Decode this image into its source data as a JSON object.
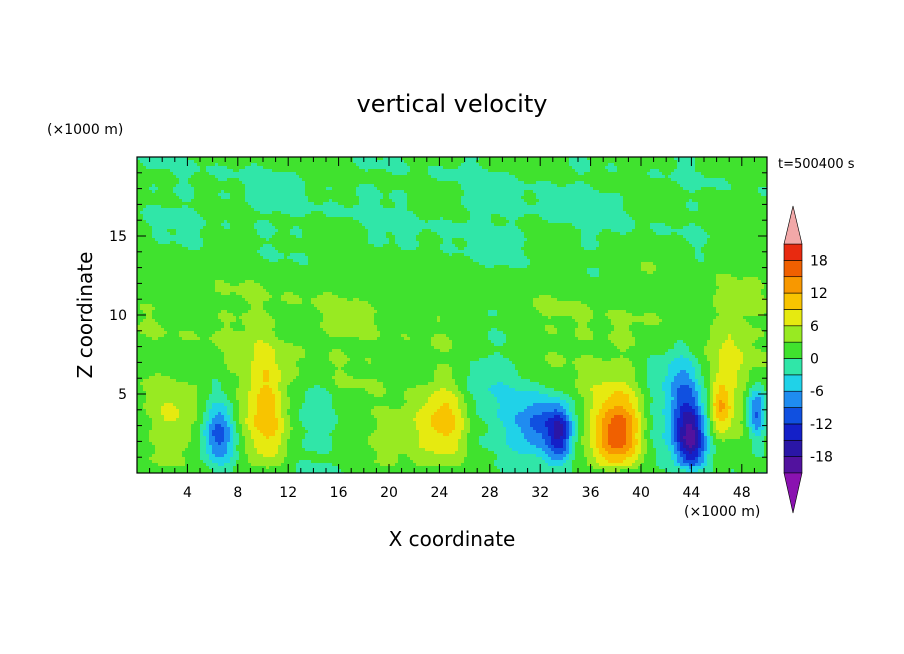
{
  "chart_data": {
    "type": "heatmap",
    "title": "vertical velocity",
    "xlabel": "X coordinate",
    "ylabel": "Z coordinate",
    "x_unit": "(×1000 m)",
    "y_unit": "(×1000 m)",
    "time_label": "t=500400 s",
    "xlim": [
      0,
      50
    ],
    "ylim": [
      0,
      20
    ],
    "xticks": [
      4,
      8,
      12,
      16,
      20,
      24,
      28,
      32,
      36,
      40,
      44,
      48
    ],
    "yticks": [
      5,
      10,
      15
    ],
    "colorbar": {
      "levels": [
        -21,
        -18,
        -15,
        -12,
        -9,
        -6,
        -3,
        0,
        3,
        6,
        9,
        12,
        15,
        18,
        21
      ],
      "tick_labels": [
        -18,
        -12,
        -6,
        0,
        6,
        12,
        18
      ],
      "colors": [
        "#8a12b0",
        "#52129e",
        "#2a16a6",
        "#1420c8",
        "#1050e0",
        "#1f8cf0",
        "#20d2e8",
        "#30e6a8",
        "#40e22e",
        "#98ea22",
        "#e6ea10",
        "#f8c400",
        "#f89800",
        "#f06000",
        "#e82a10",
        "#f2a8a8"
      ]
    },
    "features": [
      {
        "x": 3,
        "z": 3.2,
        "value": 5,
        "sx": 1.6,
        "sz": 1.8
      },
      {
        "x": 6.5,
        "z": 2.6,
        "value": -11,
        "sx": 0.9,
        "sz": 1.4
      },
      {
        "x": 10.2,
        "z": 3.8,
        "value": 9,
        "sx": 1.2,
        "sz": 2.6
      },
      {
        "x": 14.2,
        "z": 3.5,
        "value": -3,
        "sx": 1.0,
        "sz": 1.6
      },
      {
        "x": 21.5,
        "z": 2.5,
        "value": 4,
        "sx": 2.2,
        "sz": 1.4
      },
      {
        "x": 24.5,
        "z": 3.3,
        "value": 9,
        "sx": 1.4,
        "sz": 2.0
      },
      {
        "x": 27.5,
        "z": 5.0,
        "value": -4,
        "sx": 2.2,
        "sz": 2.5
      },
      {
        "x": 31.8,
        "z": 3.0,
        "value": -10,
        "sx": 1.5,
        "sz": 1.3
      },
      {
        "x": 33.6,
        "z": 2.4,
        "value": -14,
        "sx": 0.7,
        "sz": 1.3
      },
      {
        "x": 38.2,
        "z": 2.4,
        "value": 14,
        "sx": 1.3,
        "sz": 1.5
      },
      {
        "x": 38.0,
        "z": 4.2,
        "value": 5,
        "sx": 1.8,
        "sz": 2.2
      },
      {
        "x": 41.2,
        "z": 5.0,
        "value": -4,
        "sx": 1.1,
        "sz": 2.8
      },
      {
        "x": 44.0,
        "z": 2.2,
        "value": -16,
        "sx": 0.9,
        "sz": 1.6
      },
      {
        "x": 43.4,
        "z": 4.8,
        "value": -9,
        "sx": 1.0,
        "sz": 2.4
      },
      {
        "x": 47.0,
        "z": 6.5,
        "value": 5,
        "sx": 1.3,
        "sz": 3.2
      },
      {
        "x": 46.3,
        "z": 4.2,
        "value": 9,
        "sx": 0.6,
        "sz": 1.2
      },
      {
        "x": 49.2,
        "z": 3.8,
        "value": -11,
        "sx": 0.5,
        "sz": 1.2
      },
      {
        "x": 12,
        "z": 9,
        "value": 2.2,
        "sx": 10,
        "sz": 3
      },
      {
        "x": 40,
        "z": 9.5,
        "value": 2.0,
        "sx": 8,
        "sz": 3
      },
      {
        "x": 30,
        "z": 16,
        "value": -1.6,
        "sx": 9,
        "sz": 2.5
      },
      {
        "x": 8,
        "z": 17,
        "value": -1.2,
        "sx": 6,
        "sz": 2
      }
    ]
  }
}
